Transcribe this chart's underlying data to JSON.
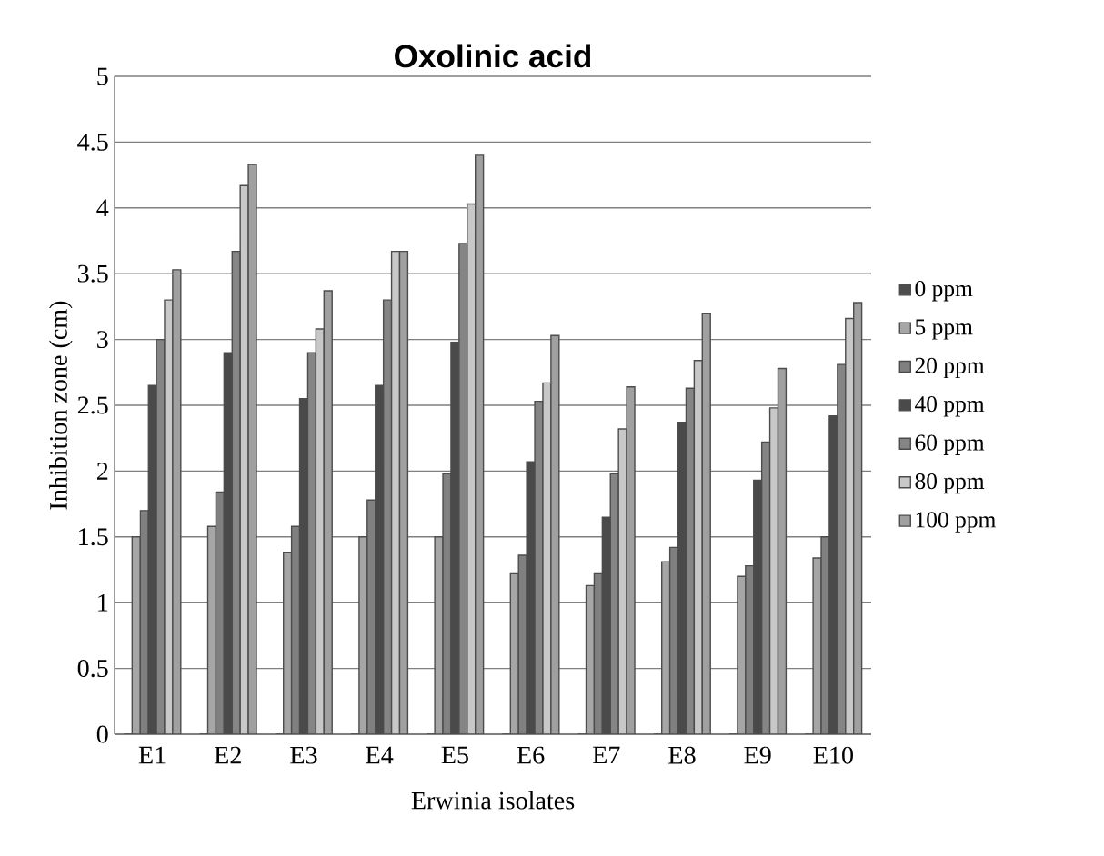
{
  "chart_data": {
    "type": "bar",
    "title": "Oxolinic acid",
    "xlabel": "Erwinia isolates",
    "ylabel": "Inhibition zone (cm)",
    "categories": [
      "E1",
      "E2",
      "E3",
      "E4",
      "E5",
      "E6",
      "E7",
      "E8",
      "E9",
      "E10"
    ],
    "series": [
      {
        "name": "0 ppm",
        "color": "#4d4d4d",
        "values": [
          0,
          0,
          0,
          0,
          0,
          0,
          0,
          0,
          0,
          0
        ]
      },
      {
        "name": "5 ppm",
        "color": "#a6a6a6",
        "values": [
          1.5,
          1.58,
          1.38,
          1.5,
          1.5,
          1.22,
          1.13,
          1.31,
          1.2,
          1.34
        ]
      },
      {
        "name": "20 ppm",
        "color": "#808080",
        "values": [
          1.7,
          1.84,
          1.58,
          1.78,
          1.98,
          1.36,
          1.22,
          1.42,
          1.28,
          1.5
        ]
      },
      {
        "name": "40 ppm",
        "color": "#4a4a4a",
        "values": [
          2.65,
          2.9,
          2.55,
          2.65,
          2.98,
          2.07,
          1.65,
          2.37,
          1.93,
          2.42
        ]
      },
      {
        "name": "60 ppm",
        "color": "#858585",
        "values": [
          3.0,
          3.67,
          2.9,
          3.3,
          3.73,
          2.53,
          1.98,
          2.63,
          2.22,
          2.81
        ]
      },
      {
        "name": "80 ppm",
        "color": "#c8c8c8",
        "values": [
          3.3,
          4.17,
          3.08,
          3.67,
          4.03,
          2.67,
          2.32,
          2.84,
          2.48,
          3.16
        ]
      },
      {
        "name": "100 ppm",
        "color": "#a0a0a0",
        "values": [
          3.53,
          4.33,
          3.37,
          3.67,
          4.4,
          3.03,
          2.64,
          3.2,
          2.78,
          3.28
        ]
      }
    ],
    "ylim": [
      0,
      5
    ],
    "yticks": [
      0,
      0.5,
      1,
      1.5,
      2,
      2.5,
      3,
      3.5,
      4,
      4.5,
      5
    ],
    "grid": "y",
    "legend": "right"
  }
}
